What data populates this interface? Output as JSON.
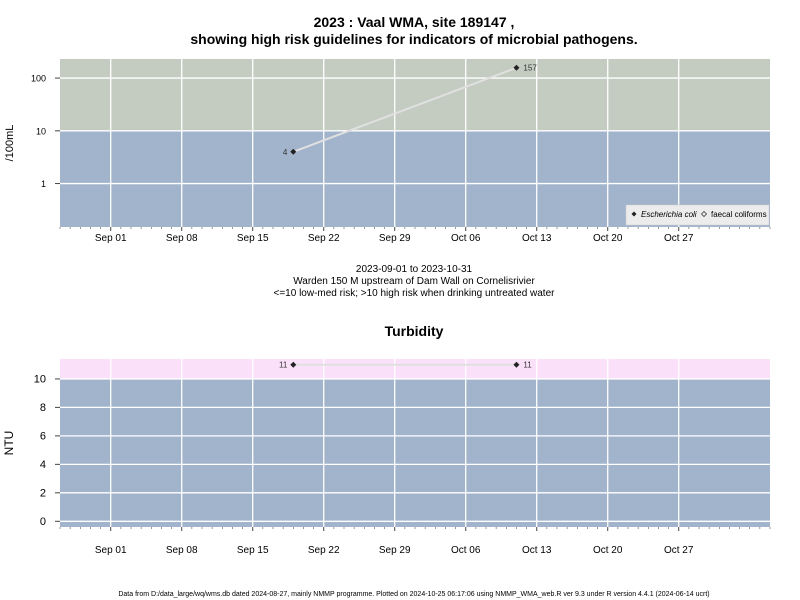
{
  "title_line1": "2023 : Vaal WMA, site 189147 ,",
  "title_line2": "showing high risk guidelines for indicators of microbial pathogens.",
  "subtitle_range": "2023-09-01 to 2023-10-31",
  "subtitle_site": "Warden 150 M upstream of Dam Wall on Cornelisrivier",
  "subtitle_risk": "<=10 low-med risk; >10 high risk when drinking untreated water",
  "footer": "Data from D:/data_large/wq/wms.db dated 2024-08-27, mainly NMMP programme. Plotted on 2024-10-25 06:17:06 using NMMP_WMA_web.R ver 9.3 under R version 4.4.1 (2024-06-14 ucrt)",
  "colors": {
    "low_band": "#a2b4cc",
    "high_band_micro": "#c4ccc1",
    "high_band_turbidity": "#fbe0fa",
    "grid": "#ffffff",
    "line": "#e0e0e0",
    "point": "#222222"
  },
  "chart_data": [
    {
      "type": "scatter",
      "title": "",
      "ylabel": "/100mL",
      "yscale": "log",
      "ylim": [
        0.15,
        230
      ],
      "xlim": [
        "2023-08-27",
        "2023-11-05"
      ],
      "guideline": 10,
      "grid": true,
      "y_ticks": [
        1,
        10,
        100
      ],
      "x_ticks": [
        "2023-09-01",
        "2023-09-08",
        "2023-09-15",
        "2023-09-22",
        "2023-09-29",
        "2023-10-06",
        "2023-10-13",
        "2023-10-20",
        "2023-10-27"
      ],
      "x_tick_labels": [
        "Sep 01",
        "Sep 08",
        "Sep 15",
        "Sep 22",
        "Sep 29",
        "Oct 06",
        "Oct 13",
        "Oct 20",
        "Oct 27"
      ],
      "series": [
        {
          "name": "Escherichia coli",
          "marker": "filled-diamond",
          "x": [
            "2023-09-19",
            "2023-10-11"
          ],
          "y": [
            4,
            157
          ],
          "labels": [
            "4",
            "157"
          ]
        },
        {
          "name": "faecal coliforms",
          "marker": "open-diamond",
          "x": [],
          "y": [],
          "labels": []
        }
      ],
      "legend": "bottom-right"
    },
    {
      "type": "scatter",
      "title": "Turbidity",
      "ylabel": "NTU",
      "yscale": "linear",
      "ylim": [
        -0.4,
        11.4
      ],
      "xlim": [
        "2023-08-27",
        "2023-11-05"
      ],
      "guideline": 10,
      "grid": true,
      "y_ticks": [
        0,
        2,
        4,
        6,
        8,
        10
      ],
      "x_ticks": [
        "2023-09-01",
        "2023-09-08",
        "2023-09-15",
        "2023-09-22",
        "2023-09-29",
        "2023-10-06",
        "2023-10-13",
        "2023-10-20",
        "2023-10-27"
      ],
      "x_tick_labels": [
        "Sep 01",
        "Sep 08",
        "Sep 15",
        "Sep 22",
        "Sep 29",
        "Oct 06",
        "Oct 13",
        "Oct 20",
        "Oct 27"
      ],
      "series": [
        {
          "name": "",
          "marker": "filled-diamond",
          "x": [
            "2023-09-19",
            "2023-10-11"
          ],
          "y": [
            11,
            11
          ],
          "labels": [
            "11",
            "11"
          ]
        }
      ]
    }
  ]
}
